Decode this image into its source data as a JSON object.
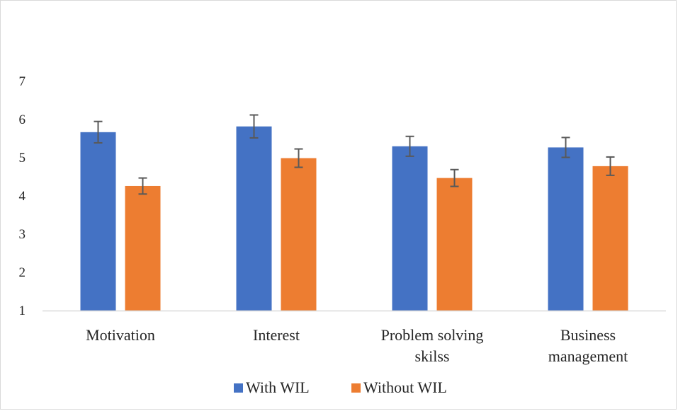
{
  "chart_data": {
    "type": "bar",
    "title": "",
    "xlabel": "",
    "ylabel": "",
    "ylim": [
      1,
      7
    ],
    "yticks": [
      1,
      2,
      3,
      4,
      5,
      6,
      7
    ],
    "grid": false,
    "legend_position": "bottom",
    "categories": [
      [
        "Motivation"
      ],
      [
        "Interest"
      ],
      [
        "Problem solving",
        "skilss"
      ],
      [
        "Business",
        "management"
      ]
    ],
    "series": [
      {
        "name": "With WIL",
        "color": "#4472C4",
        "values": [
          5.67,
          5.82,
          5.3,
          5.27
        ],
        "error": [
          0.28,
          0.3,
          0.26,
          0.26
        ]
      },
      {
        "name": "Without WIL",
        "color": "#ED7D31",
        "values": [
          4.26,
          4.99,
          4.47,
          4.78
        ],
        "error": [
          0.21,
          0.24,
          0.22,
          0.24
        ]
      }
    ]
  }
}
